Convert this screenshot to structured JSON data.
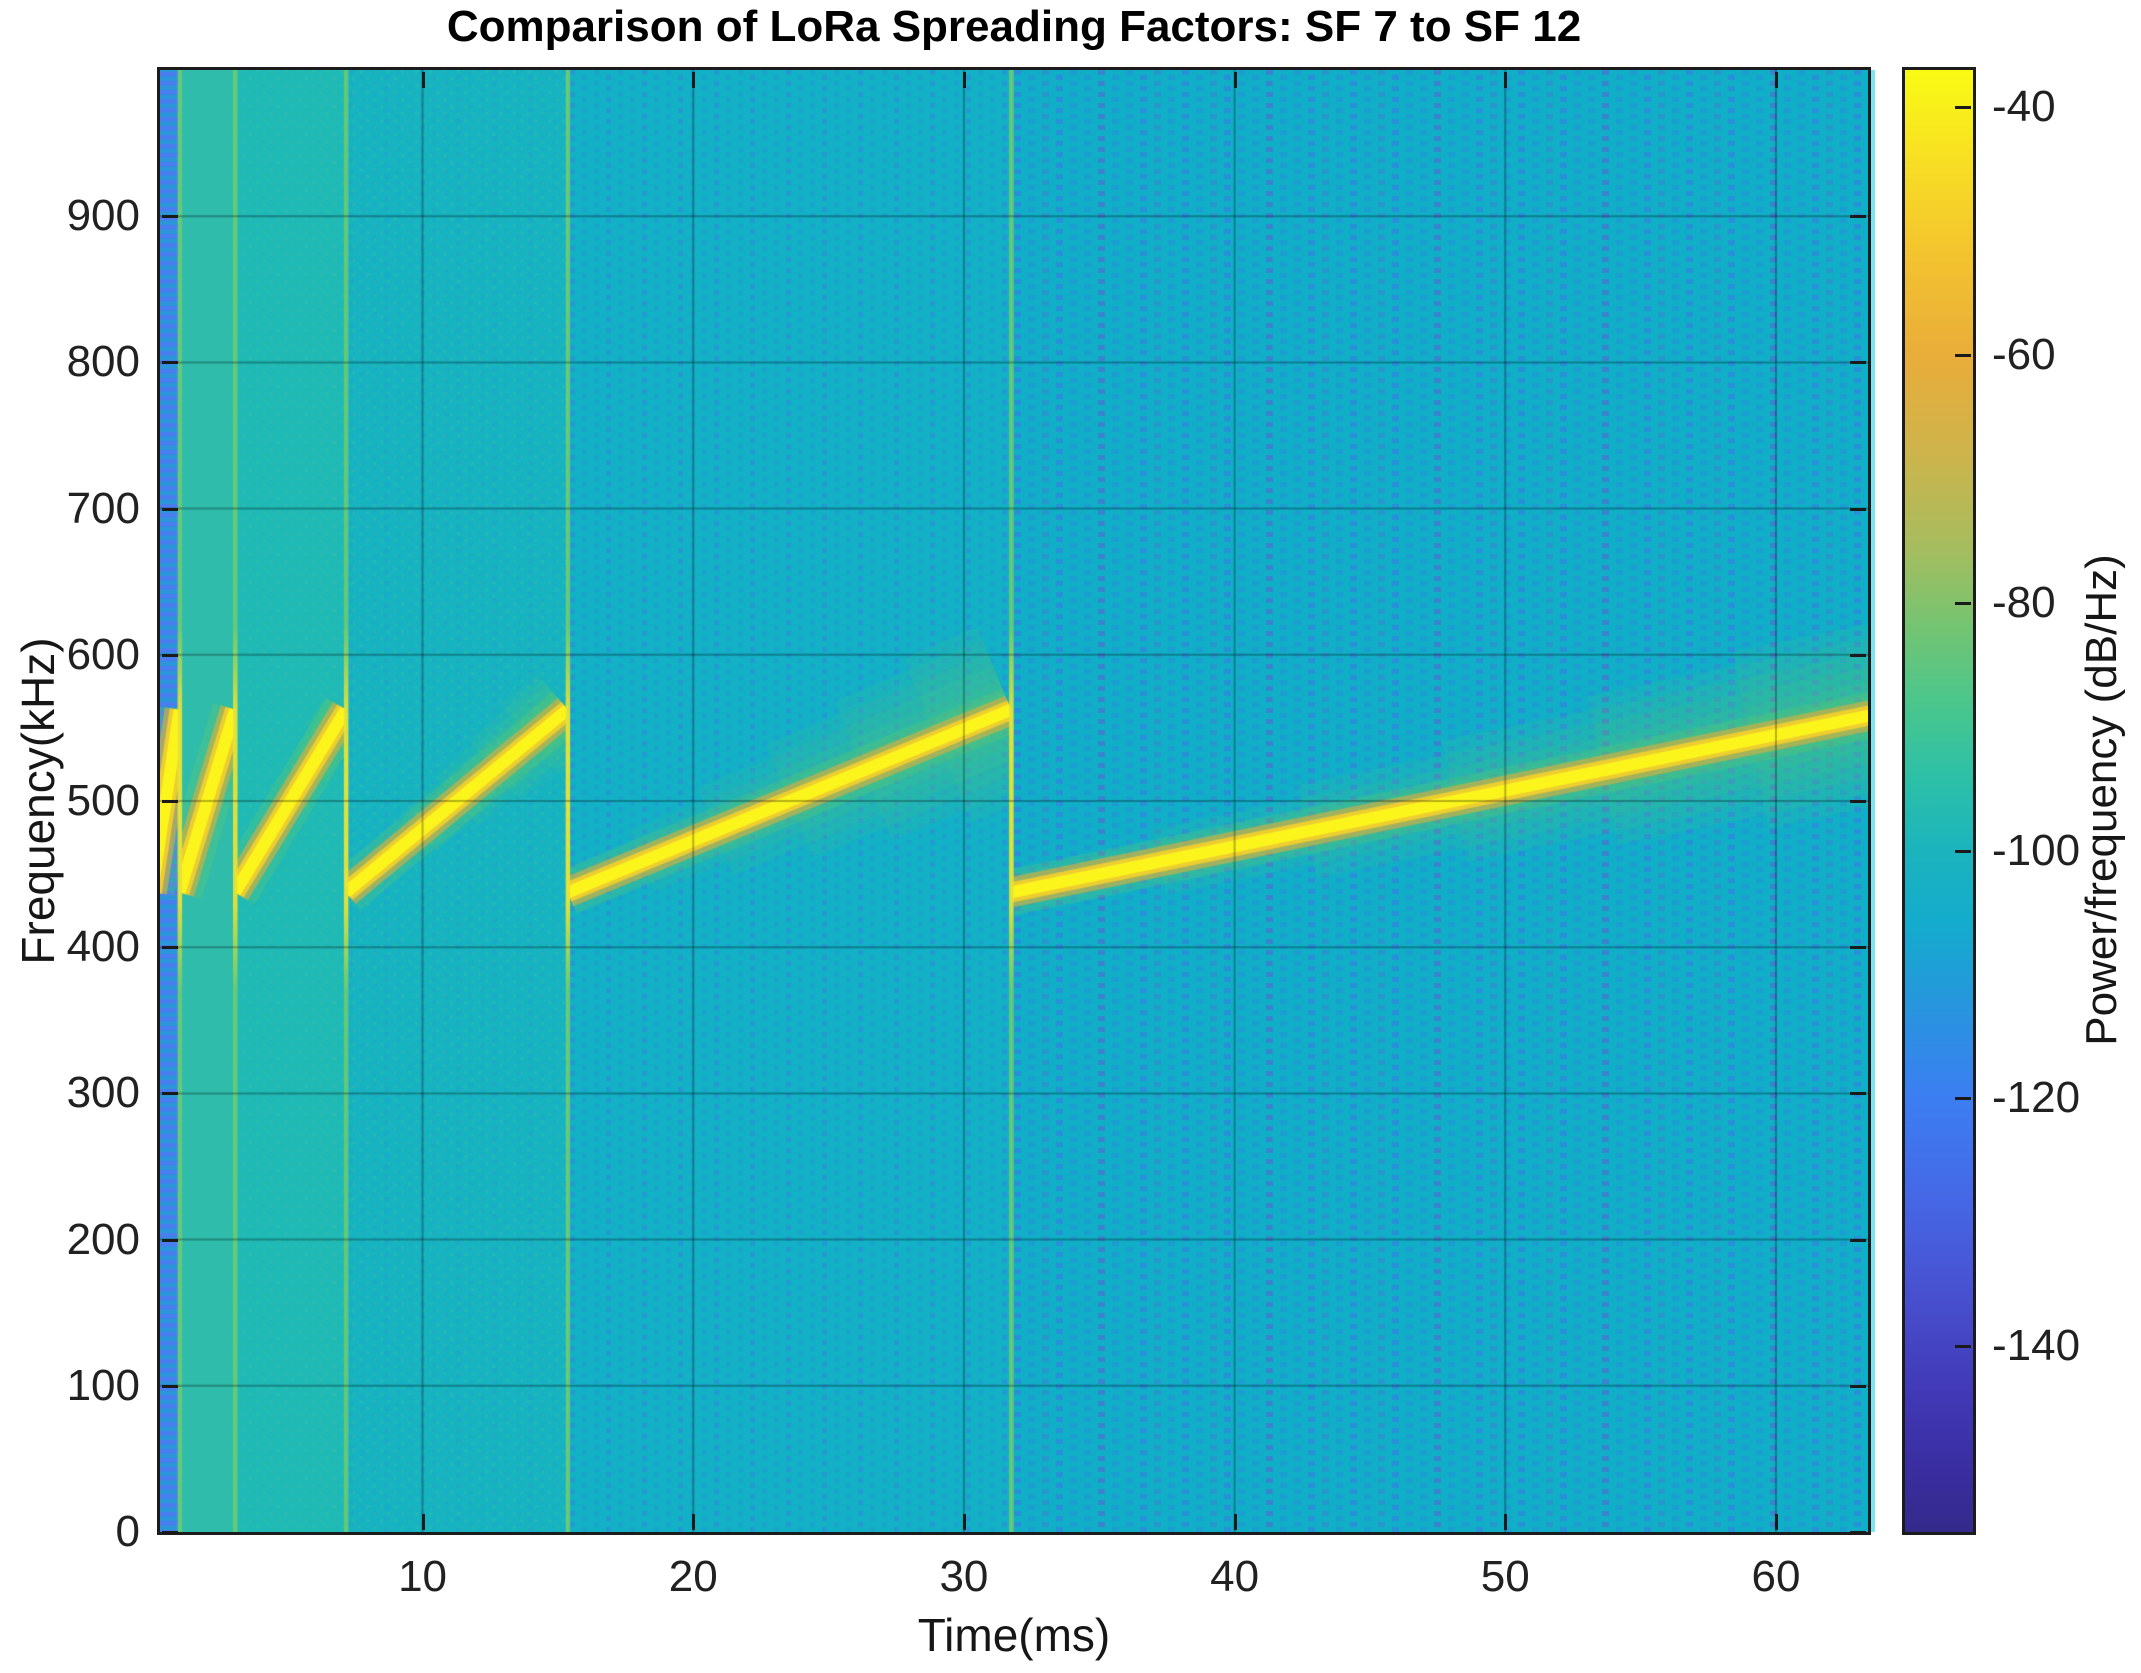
{
  "chart_data": {
    "type": "heatmap",
    "subtype": "spectrogram",
    "title": "Comparison of LoRa Spreading Factors: SF 7 to SF 12",
    "xlabel": "Time(ms)",
    "ylabel": "Frequency(kHz)",
    "colorbar_label": "Power/frequency (dB/Hz)",
    "x_ticks": [
      10,
      20,
      30,
      40,
      50,
      60
    ],
    "y_ticks": [
      0,
      100,
      200,
      300,
      400,
      500,
      600,
      700,
      800,
      900
    ],
    "colorbar_ticks": [
      -40,
      -60,
      -80,
      -100,
      -120,
      -140
    ],
    "xlim": [
      0.3,
      63.4
    ],
    "ylim": [
      0,
      1000
    ],
    "clim": [
      -155,
      -37
    ],
    "grid": true,
    "legend": "none",
    "signal": {
      "description": "Six consecutive LoRa up-chirp symbols, one per spreading factor, each sweeping the 125 kHz bandwidth centered at 500 kHz",
      "bandwidth_khz": 125,
      "center_freq_khz": 500,
      "f_start_khz": 437.5,
      "f_end_khz": 562.5,
      "segments": [
        {
          "sf": "SF7",
          "t_start_ms": 0.0,
          "t_end_ms": 1.024
        },
        {
          "sf": "SF8",
          "t_start_ms": 1.024,
          "t_end_ms": 3.072
        },
        {
          "sf": "SF9",
          "t_start_ms": 3.072,
          "t_end_ms": 7.168
        },
        {
          "sf": "SF10",
          "t_start_ms": 7.168,
          "t_end_ms": 15.36
        },
        {
          "sf": "SF11",
          "t_start_ms": 15.36,
          "t_end_ms": 31.744
        },
        {
          "sf": "SF12",
          "t_start_ms": 31.744,
          "t_end_ms": 64.512
        }
      ]
    },
    "colormap": [
      {
        "v": -155,
        "c": "#342a8b"
      },
      {
        "v": -150,
        "c": "#3a2da0"
      },
      {
        "v": -144,
        "c": "#4138b5"
      },
      {
        "v": -136,
        "c": "#4850cf"
      },
      {
        "v": -128,
        "c": "#4668e6"
      },
      {
        "v": -120,
        "c": "#3c7ef2"
      },
      {
        "v": -112,
        "c": "#2697dc"
      },
      {
        "v": -106,
        "c": "#14abcd"
      },
      {
        "v": -100,
        "c": "#1bb4bd"
      },
      {
        "v": -94,
        "c": "#2dc0a6"
      },
      {
        "v": -88,
        "c": "#4bc68c"
      },
      {
        "v": -82,
        "c": "#74c472"
      },
      {
        "v": -76,
        "c": "#a3bd60"
      },
      {
        "v": -68,
        "c": "#cdb44c"
      },
      {
        "v": -60,
        "c": "#e9ad3a"
      },
      {
        "v": -52,
        "c": "#f3c32f"
      },
      {
        "v": -45,
        "c": "#f7dc25"
      },
      {
        "v": -37,
        "c": "#f9fb14"
      }
    ],
    "palette": {
      "figure_background": "#ffffff",
      "axis_color": "#1c1c1c",
      "tick_text_color": "#212121",
      "grid_rgba": "rgba(0,0,0,0.28)",
      "chirp_core": "#fcf51c",
      "chirp_mid": "rgba(250,210,40,0.85)",
      "chirp_edge": "rgba(243,166,56,0.5)",
      "fan_green_rgb": "126,209,82",
      "boundary_green": "rgba(105,203,115,0.9)",
      "boundary_yellow": "rgba(230,228,55,0.95)",
      "sf7_stripe_blue": "rgba(77,122,243,0.9)",
      "dash_blue_rgb": "63,111,235",
      "dash_purple_rgb": "99,87,216",
      "checker_green": "rgba(86,199,134,0.2)",
      "segment_base": [
        "#2a97d8",
        "#2fbcab",
        "#1fb9b6",
        "#16b4c1",
        "#12b1c5",
        "#10afc7"
      ],
      "edge_strip": "#7ee4ef"
    }
  }
}
